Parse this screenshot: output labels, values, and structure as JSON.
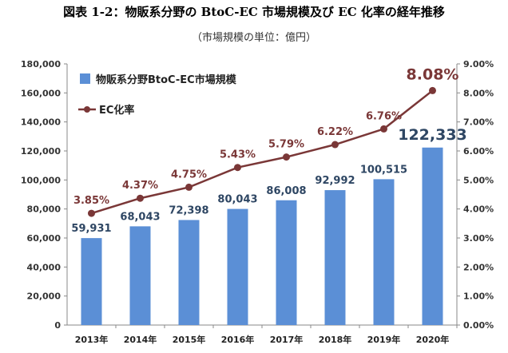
{
  "header": {
    "title": "図表 1-2：物販系分野の BtoC-EC 市場規模及び EC 化率の経年推移",
    "subtitle": "（市場規模の単位：億円）"
  },
  "colors": {
    "bar": "#5b8fd6",
    "line": "#7a3737",
    "bar_label": "#2e4663"
  },
  "chart_data": {
    "type": "bar",
    "categories": [
      "2013年",
      "2014年",
      "2015年",
      "2016年",
      "2017年",
      "2018年",
      "2019年",
      "2020年"
    ],
    "series": [
      {
        "name": "物販系分野BtoC-EC市場規模",
        "type": "bar",
        "axis": "left",
        "values": [
          59931,
          68043,
          72398,
          80043,
          86008,
          92992,
          100515,
          122333
        ],
        "labels": [
          "59,931",
          "68,043",
          "72,398",
          "80,043",
          "86,008",
          "92,992",
          "100,515",
          "122,333"
        ]
      },
      {
        "name": "EC化率",
        "type": "line",
        "axis": "right",
        "values": [
          3.85,
          4.37,
          4.75,
          5.43,
          5.79,
          6.22,
          6.76,
          8.08
        ],
        "labels": [
          "3.85%",
          "4.37%",
          "4.75%",
          "5.43%",
          "5.79%",
          "6.22%",
          "6.76%",
          "8.08%"
        ]
      }
    ],
    "y_left": {
      "range": [
        0,
        180000
      ],
      "ticks": [
        0,
        20000,
        40000,
        60000,
        80000,
        100000,
        120000,
        140000,
        160000,
        180000
      ],
      "tick_labels": [
        "0",
        "20,000",
        "40,000",
        "60,000",
        "80,000",
        "100,000",
        "120,000",
        "140,000",
        "160,000",
        "180,000"
      ]
    },
    "y_right": {
      "range": [
        0,
        9
      ],
      "ticks": [
        0,
        1,
        2,
        3,
        4,
        5,
        6,
        7,
        8,
        9
      ],
      "tick_labels": [
        "0.00%",
        "1.00%",
        "2.00%",
        "3.00%",
        "4.00%",
        "5.00%",
        "6.00%",
        "7.00%",
        "8.00%",
        "9.00%"
      ]
    },
    "grid": false,
    "legend": "top-left"
  }
}
